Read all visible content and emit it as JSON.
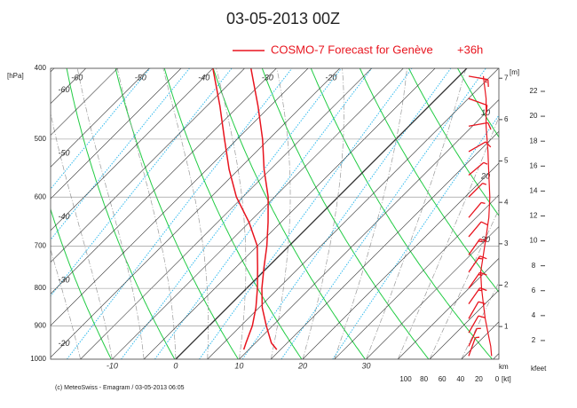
{
  "chart_data": {
    "type": "emagram",
    "title": "03-05-2013  00Z",
    "legend": {
      "label": "COSMO-7 Forecast for Genève",
      "lead": "+36h",
      "color": "#e8141e"
    },
    "footer": "(c) MeteoSwiss - Emagram  /  03-05-2013  06:05",
    "y_label": "[hPa]",
    "ylim": [
      1000,
      400
    ],
    "yticks": [
      400,
      500,
      600,
      700,
      800,
      900,
      1000
    ],
    "log_y": true,
    "grid": true,
    "xlim": [
      -19.7,
      50.9
    ],
    "xticks": [
      -10,
      0,
      10,
      20,
      30
    ],
    "isotherm_labels": {
      "top": [
        -60,
        -50,
        -40,
        -30,
        -20
      ],
      "left": [
        -60,
        -50,
        -40,
        -30,
        -20
      ],
      "right": [
        10,
        20,
        30
      ]
    },
    "pressure": [
      400,
      450,
      500,
      550,
      600,
      650,
      700,
      750,
      800,
      850,
      900,
      950,
      970
    ],
    "series": [
      {
        "color": "#e8141e",
        "values": [
          -34,
          -27,
          -21,
          -16,
          -11,
          -7,
          -3.5,
          -0.5,
          2.4,
          5.5,
          9,
          12.5,
          14.4
        ]
      },
      {
        "color": "#e8141e",
        "values": [
          -40,
          -33,
          -27,
          -21.5,
          -16,
          -10,
          -5,
          -1.5,
          1.7,
          4.5,
          6.8,
          8.5,
          9.2
        ]
      }
    ],
    "wind": {
      "pressure": [
        410,
        440,
        480,
        520,
        560,
        600,
        640,
        680,
        720,
        760,
        800,
        840,
        880,
        920,
        960,
        990
      ],
      "speed": [
        15,
        12,
        12,
        10,
        9,
        8,
        9,
        12,
        15,
        18,
        17,
        15,
        13,
        10,
        7,
        6
      ],
      "direction": [
        100,
        110,
        80,
        60,
        50,
        45,
        40,
        40,
        35,
        35,
        35,
        35,
        30,
        30,
        25,
        20
      ],
      "xlim": [
        0,
        100
      ],
      "xticks": [
        100,
        80,
        60,
        40,
        20,
        0
      ],
      "x_label": "[kt]",
      "color": "#e8141e"
    },
    "height_km": {
      "label": "km",
      "unit": "[m]",
      "ylim": [
        0.21,
        7.24
      ],
      "yticks": [
        1,
        2,
        3,
        4,
        5,
        6,
        7
      ]
    },
    "height_kfeet": {
      "label": "kfeet",
      "ylim": [
        0.5,
        23.85
      ],
      "yticks": [
        2,
        4,
        6,
        8,
        10,
        12,
        14,
        16,
        18,
        20,
        22
      ]
    }
  }
}
